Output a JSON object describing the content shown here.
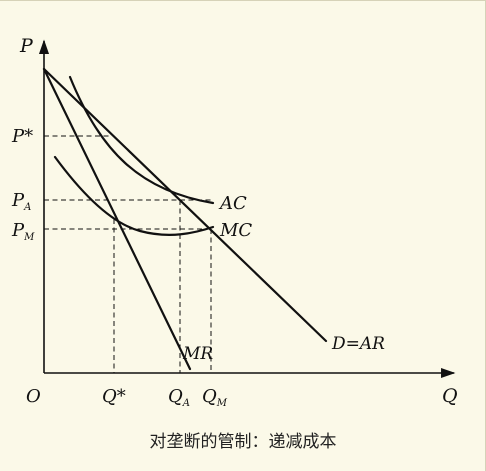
{
  "diagram": {
    "axis_labels": {
      "y": "P",
      "x": "Q",
      "origin": "O"
    },
    "price_labels": {
      "p_star": "P*",
      "p_a": "P",
      "p_a_sub": "A",
      "p_m": "P",
      "p_m_sub": "M"
    },
    "quantity_labels": {
      "q_star": "Q*",
      "q_a": "Q",
      "q_a_sub": "A",
      "q_m": "Q",
      "q_m_sub": "M"
    },
    "curve_labels": {
      "ac": "AC",
      "mc": "MC",
      "mr": "MR",
      "demand": "D=AR"
    }
  },
  "caption": "对垄断的管制：递减成本",
  "colors": {
    "background": "#fbf9e8",
    "ink": "#111111"
  }
}
